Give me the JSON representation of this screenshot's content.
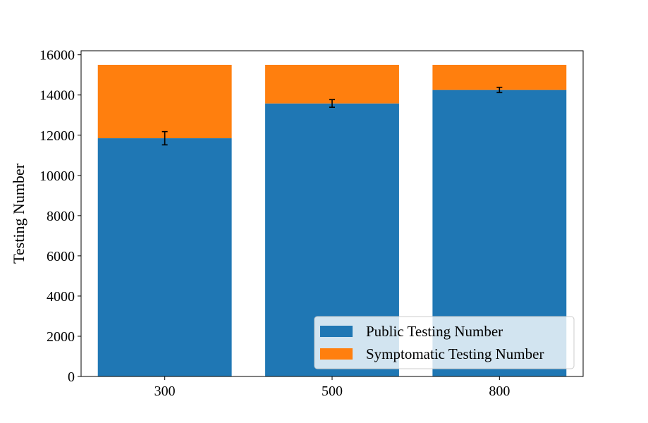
{
  "chart_data": {
    "type": "bar",
    "stacked": true,
    "categories": [
      "300",
      "500",
      "800"
    ],
    "series": [
      {
        "name": "Public Testing Number",
        "color": "#1f77b4",
        "values": [
          11850,
          13580,
          14250
        ],
        "error": [
          330,
          190,
          130
        ]
      },
      {
        "name": "Symptomatic Testing Number",
        "color": "#ff7f0e",
        "values": [
          3650,
          1920,
          1250
        ]
      }
    ],
    "title": "",
    "xlabel": "",
    "ylabel": "Testing Number",
    "ylim": [
      0,
      16200
    ],
    "yticks": [
      0,
      2000,
      4000,
      6000,
      8000,
      10000,
      12000,
      14000,
      16000
    ],
    "ytick_labels": [
      "0",
      "2000",
      "4000",
      "6000",
      "8000",
      "10000",
      "12000",
      "14000",
      "16000"
    ],
    "grid": false,
    "legend_position": "bottom-right"
  }
}
